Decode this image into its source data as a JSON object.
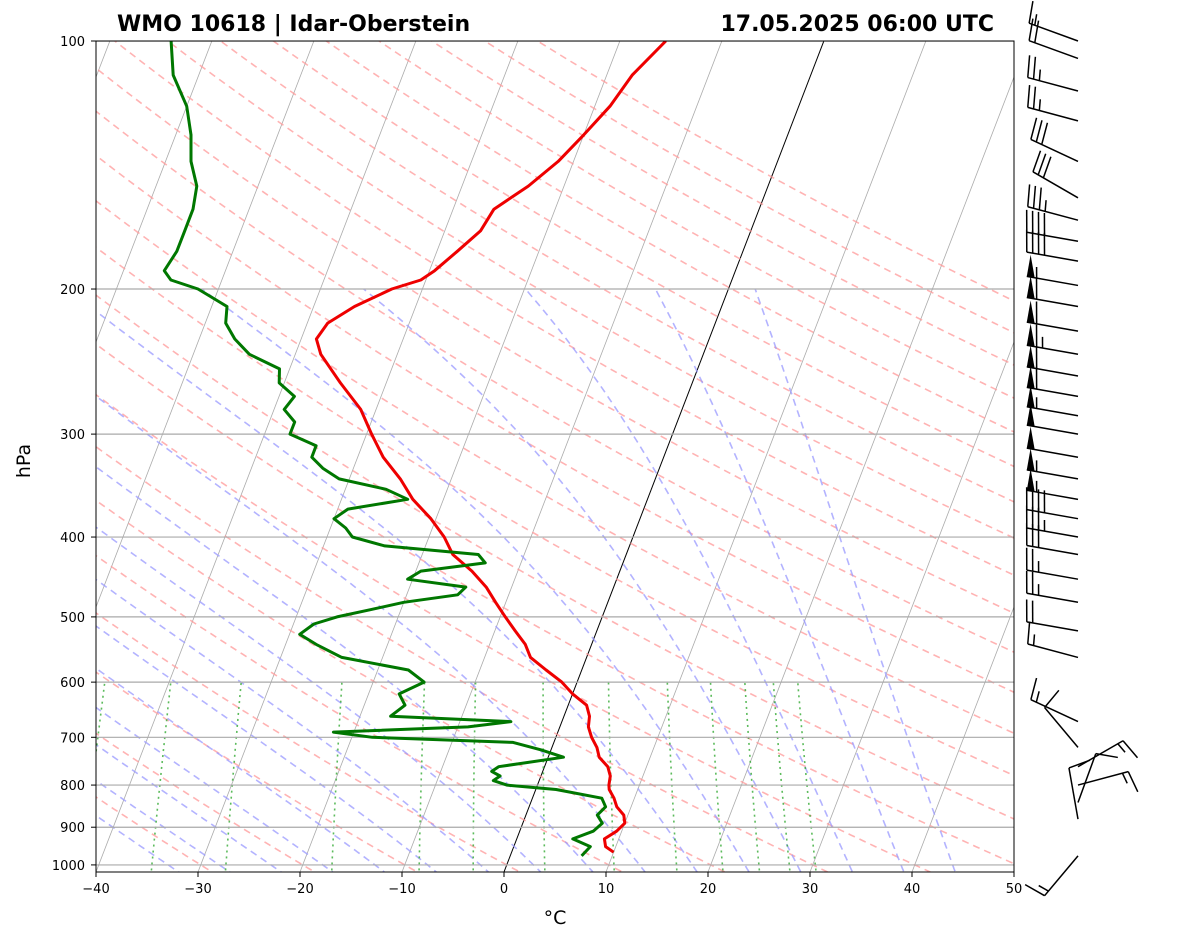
{
  "title_left": "WMO 10618 | Idar-Oberstein",
  "title_right": "17.05.2025 06:00 UTC",
  "chart_data": {
    "type": "skew-t",
    "xlabel": "°C",
    "ylabel": "hPa",
    "xlim": [
      -40,
      50
    ],
    "ylim": [
      1020,
      100
    ],
    "y_scale": "log",
    "x_ticks": [
      -40,
      -30,
      -20,
      -10,
      0,
      10,
      20,
      30,
      40,
      50
    ],
    "x_tick_labels": [
      "−40",
      "−30",
      "−20",
      "−10",
      "0",
      "10",
      "20",
      "30",
      "40",
      "50"
    ],
    "y_ticks": [
      100,
      200,
      300,
      400,
      500,
      600,
      700,
      800,
      900,
      1000
    ],
    "y_tick_labels": [
      "100",
      "200",
      "300",
      "400",
      "500",
      "600",
      "700",
      "800",
      "900",
      "1000"
    ],
    "grid": true,
    "colors": {
      "temperature": "#ee0000",
      "dewpoint": "#007700",
      "dry_adiabats": "#ff9999",
      "moist_adiabats": "#9999ff",
      "mixing_ratio": "#33aa33",
      "isotherms": "#888888",
      "zero_isotherm": "#000000",
      "wind_barbs": "#000000"
    },
    "series": [
      {
        "name": "Temperature",
        "pressure": [
          965,
          950,
          930,
          910,
          890,
          870,
          850,
          830,
          810,
          800,
          780,
          760,
          740,
          720,
          700,
          680,
          660,
          640,
          620,
          600,
          580,
          560,
          540,
          520,
          500,
          480,
          460,
          440,
          420,
          400,
          380,
          360,
          340,
          320,
          300,
          280,
          260,
          240,
          230,
          220,
          210,
          200,
          195,
          190,
          180,
          170,
          160,
          150,
          140,
          130,
          120,
          110,
          100
        ],
        "temperature": [
          10.0,
          9.0,
          8.6,
          9.5,
          10.0,
          9.6,
          8.6,
          8.0,
          7.2,
          7.0,
          6.8,
          6.2,
          5.0,
          4.4,
          3.5,
          2.8,
          2.5,
          1.8,
          0.0,
          -1.5,
          -3.5,
          -5.5,
          -6.5,
          -8.0,
          -9.5,
          -11.0,
          -12.5,
          -14.5,
          -17.0,
          -18.5,
          -20.5,
          -23.0,
          -25.0,
          -27.5,
          -29.5,
          -31.5,
          -34.5,
          -37.5,
          -38.5,
          -38.0,
          -36.0,
          -33.0,
          -30.5,
          -29.5,
          -28.0,
          -26.5,
          -26.0,
          -23.5,
          -21.5,
          -20.0,
          -18.5,
          -17.5,
          -15.5
        ]
      },
      {
        "name": "Dewpoint",
        "pressure": [
          975,
          950,
          930,
          910,
          890,
          870,
          850,
          830,
          810,
          800,
          790,
          780,
          770,
          760,
          740,
          725,
          710,
          700,
          690,
          680,
          670,
          660,
          640,
          620,
          600,
          580,
          560,
          540,
          525,
          510,
          500,
          490,
          480,
          470,
          460,
          450,
          440,
          430,
          420,
          410,
          400,
          390,
          380,
          370,
          360,
          350,
          340,
          330,
          320,
          310,
          300,
          290,
          280,
          270,
          260,
          250,
          240,
          230,
          220,
          210,
          200,
          195,
          190,
          180,
          170,
          160,
          150,
          140,
          130,
          120,
          110,
          100
        ],
        "dewpoint": [
          7.0,
          7.5,
          5.5,
          7.2,
          7.8,
          7.0,
          7.5,
          6.8,
          2.0,
          -3.0,
          -4.5,
          -4.0,
          -5.0,
          -4.5,
          1.5,
          -1.0,
          -4.0,
          -18.0,
          -22.0,
          -9.0,
          -5.0,
          -17.0,
          -16.0,
          -17.0,
          -15.0,
          -17.0,
          -24.0,
          -27.0,
          -29.0,
          -28.0,
          -26.0,
          -23.0,
          -20.0,
          -15.0,
          -14.5,
          -20.5,
          -19.5,
          -13.5,
          -14.5,
          -24.0,
          -27.5,
          -28.5,
          -30.0,
          -29.0,
          -23.5,
          -26.0,
          -31.0,
          -33.0,
          -34.5,
          -34.5,
          -37.5,
          -37.5,
          -39.0,
          -38.5,
          -40.5,
          -41.0,
          -44.5,
          -46.5,
          -48.0,
          -48.5,
          -52.0,
          -55.0,
          -56.0,
          -55.5,
          -55.5,
          -55.5,
          -56.0,
          -57.5,
          -58.5,
          -60.0,
          -62.5,
          -64.0
        ]
      }
    ],
    "wind_barbs": [
      {
        "pressure": 975,
        "speed_kt": 15,
        "dir_deg": 220
      },
      {
        "pressure": 880,
        "speed_kt": 10,
        "dir_deg": 350
      },
      {
        "pressure": 840,
        "speed_kt": 10,
        "dir_deg": 20
      },
      {
        "pressure": 800,
        "speed_kt": 15,
        "dir_deg": 75
      },
      {
        "pressure": 760,
        "speed_kt": 15,
        "dir_deg": 60
      },
      {
        "pressure": 720,
        "speed_kt": 10,
        "dir_deg": 320
      },
      {
        "pressure": 670,
        "speed_kt": 15,
        "dir_deg": 295
      },
      {
        "pressure": 560,
        "speed_kt": 15,
        "dir_deg": 285
      },
      {
        "pressure": 520,
        "speed_kt": 20,
        "dir_deg": 280
      },
      {
        "pressure": 480,
        "speed_kt": 25,
        "dir_deg": 280
      },
      {
        "pressure": 450,
        "speed_kt": 25,
        "dir_deg": 280
      },
      {
        "pressure": 420,
        "speed_kt": 30,
        "dir_deg": 280
      },
      {
        "pressure": 400,
        "speed_kt": 35,
        "dir_deg": 280
      },
      {
        "pressure": 380,
        "speed_kt": 40,
        "dir_deg": 280
      },
      {
        "pressure": 360,
        "speed_kt": 55,
        "dir_deg": 280
      },
      {
        "pressure": 340,
        "speed_kt": 55,
        "dir_deg": 280
      },
      {
        "pressure": 320,
        "speed_kt": 50,
        "dir_deg": 280
      },
      {
        "pressure": 300,
        "speed_kt": 50,
        "dir_deg": 280
      },
      {
        "pressure": 285,
        "speed_kt": 55,
        "dir_deg": 280
      },
      {
        "pressure": 270,
        "speed_kt": 60,
        "dir_deg": 280
      },
      {
        "pressure": 255,
        "speed_kt": 60,
        "dir_deg": 280
      },
      {
        "pressure": 240,
        "speed_kt": 65,
        "dir_deg": 280
      },
      {
        "pressure": 225,
        "speed_kt": 60,
        "dir_deg": 280
      },
      {
        "pressure": 210,
        "speed_kt": 60,
        "dir_deg": 280
      },
      {
        "pressure": 198,
        "speed_kt": 55,
        "dir_deg": 280
      },
      {
        "pressure": 185,
        "speed_kt": 40,
        "dir_deg": 280
      },
      {
        "pressure": 175,
        "speed_kt": 40,
        "dir_deg": 280
      },
      {
        "pressure": 165,
        "speed_kt": 35,
        "dir_deg": 285
      },
      {
        "pressure": 155,
        "speed_kt": 30,
        "dir_deg": 300
      },
      {
        "pressure": 140,
        "speed_kt": 30,
        "dir_deg": 295
      },
      {
        "pressure": 125,
        "speed_kt": 25,
        "dir_deg": 285
      },
      {
        "pressure": 115,
        "speed_kt": 25,
        "dir_deg": 285
      },
      {
        "pressure": 105,
        "speed_kt": 20,
        "dir_deg": 290
      },
      {
        "pressure": 100,
        "speed_kt": 15,
        "dir_deg": 290
      }
    ]
  }
}
